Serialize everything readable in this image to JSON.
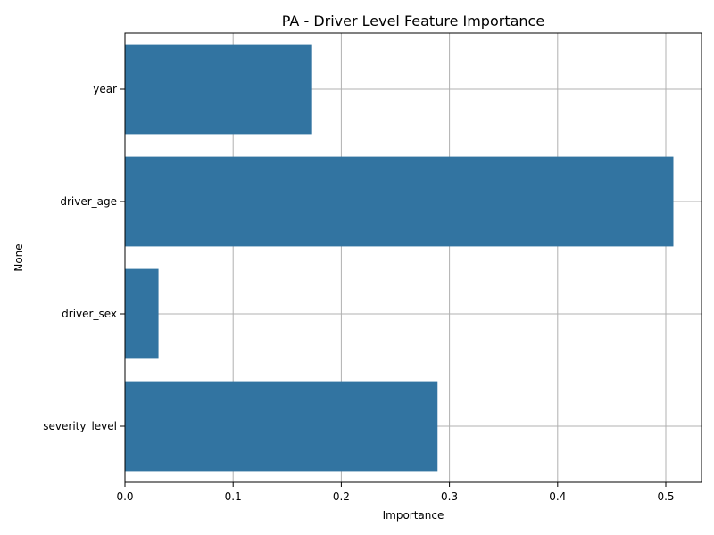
{
  "chart_data": {
    "type": "bar",
    "orientation": "horizontal",
    "title": "PA - Driver Level Feature Importance",
    "xlabel": "Importance",
    "ylabel": "None",
    "categories": [
      "year",
      "driver_age",
      "driver_sex",
      "severity_level"
    ],
    "values": [
      0.173,
      0.507,
      0.031,
      0.289
    ],
    "xlim": [
      0,
      0.533
    ],
    "xticks": [
      0.0,
      0.1,
      0.2,
      0.3,
      0.4,
      0.5
    ],
    "xtick_labels": [
      "0.0",
      "0.1",
      "0.2",
      "0.3",
      "0.4",
      "0.5"
    ],
    "grid": true,
    "bar_color": "#3274a1"
  }
}
